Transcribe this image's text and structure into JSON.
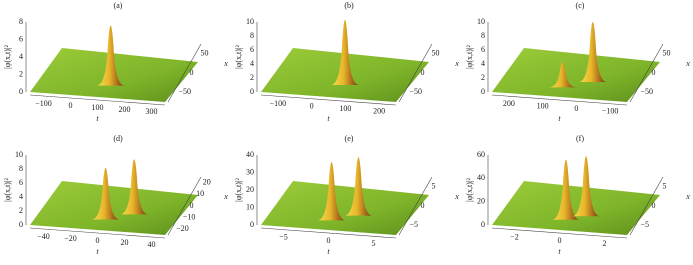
{
  "panels": [
    {
      "label": "(a)",
      "zlabel": "|φ(x,t)|²",
      "tlabel": "t",
      "xlabel": "x",
      "zticks": [
        "0",
        "2",
        "4",
        "6",
        "8"
      ],
      "tticks": [
        "−100",
        "0",
        "100",
        "200",
        "300"
      ],
      "xticks": [
        "50",
        "0",
        "−50"
      ]
    },
    {
      "label": "(b)",
      "zlabel": "|φ(x,t)|²",
      "tlabel": "t",
      "xlabel": "x",
      "zticks": [
        "0",
        "2",
        "4",
        "6",
        "8",
        "10"
      ],
      "tticks": [
        "−100",
        "0",
        "100",
        "200"
      ],
      "xticks": [
        "50",
        "0",
        "−50"
      ]
    },
    {
      "label": "(c)",
      "zlabel": "|φ(x,t)|²",
      "tlabel": "t",
      "xlabel": "x",
      "zticks": [
        "0",
        "2",
        "4",
        "6",
        "8",
        "10"
      ],
      "tticks": [
        "200",
        "100",
        "0",
        "−100"
      ],
      "xticks": [
        "50",
        "0",
        "−50"
      ]
    },
    {
      "label": "(d)",
      "zlabel": "|φ(x,t)|²",
      "tlabel": "t",
      "xlabel": "x",
      "zticks": [
        "0",
        "2",
        "4",
        "6",
        "8",
        "10"
      ],
      "tticks": [
        "−40",
        "−20",
        "0",
        "20",
        "40"
      ],
      "xticks": [
        "20",
        "10",
        "0",
        "−10",
        "−20"
      ]
    },
    {
      "label": "(e)",
      "zlabel": "|φ(x,t)|²",
      "tlabel": "t",
      "xlabel": "x",
      "zticks": [
        "0",
        "10",
        "20",
        "30",
        "40"
      ],
      "tticks": [
        "−5",
        "0",
        "5"
      ],
      "xticks": [
        "5",
        "0",
        "−5"
      ]
    },
    {
      "label": "(f)",
      "zlabel": "|φ(x,t)|²",
      "tlabel": "t",
      "xlabel": "x",
      "zticks": [
        "0",
        "20",
        "40",
        "60"
      ],
      "tticks": [
        "−2",
        "0",
        "2"
      ],
      "xticks": [
        "5",
        "0",
        "−5"
      ]
    }
  ]
}
